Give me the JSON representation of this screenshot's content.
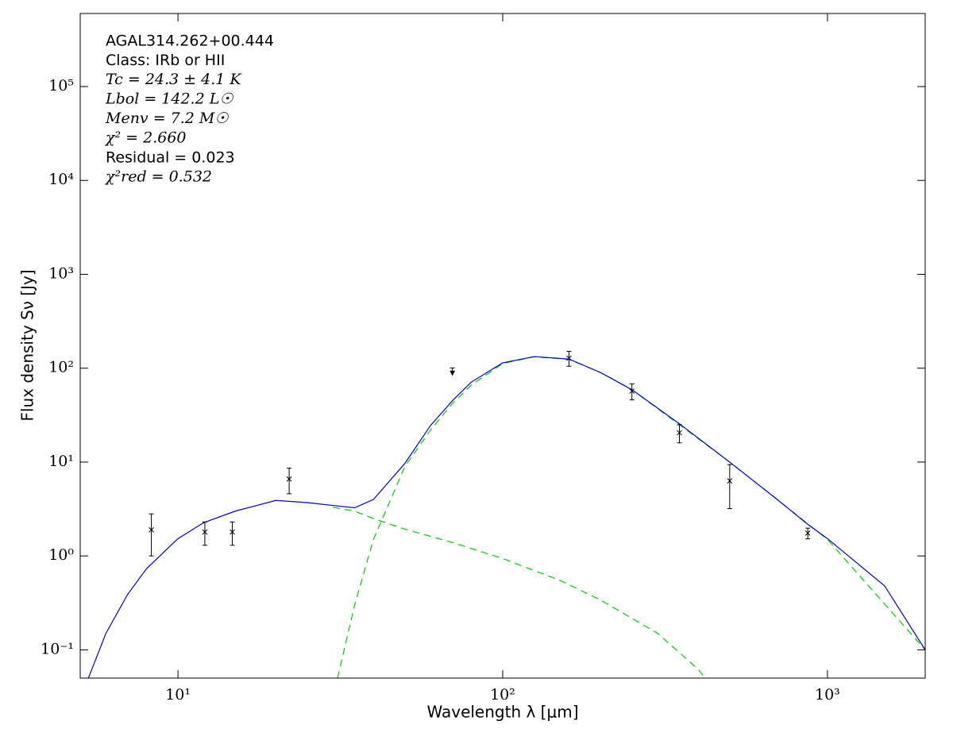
{
  "chart_data": {
    "type": "line",
    "xlabel": "Wavelength λ [μm]",
    "ylabel": "Flux density Sν [Jy]",
    "xlog": true,
    "ylog": true,
    "xlim": [
      5,
      2000
    ],
    "ylim": [
      0.05,
      600000
    ],
    "xticks": [
      {
        "value": 10,
        "label": "10¹"
      },
      {
        "value": 100,
        "label": "10²"
      },
      {
        "value": 1000,
        "label": "10³"
      }
    ],
    "yticks": [
      {
        "value": 0.1,
        "label": "10⁻¹"
      },
      {
        "value": 1,
        "label": "10⁰"
      },
      {
        "value": 10,
        "label": "10¹"
      },
      {
        "value": 100,
        "label": "10²"
      },
      {
        "value": 1000,
        "label": "10³"
      },
      {
        "value": 10000,
        "label": "10⁴"
      },
      {
        "value": 100000,
        "label": "10⁵"
      }
    ],
    "annotations": [
      "AGAL314.262+00.444",
      "Class: IRb or HII",
      "Tc = 24.3 ± 4.1 K",
      "Lbol = 142.2 L☉",
      "Menv = 7.2 M☉",
      "χ² = 2.660",
      "Residual = 0.023",
      "χ²red = 0.532"
    ],
    "curves": [
      {
        "color": "#00cc00",
        "dashed": true,
        "x": [
          30,
          35,
          40,
          50,
          70,
          100,
          150,
          200,
          300,
          400,
          420
        ],
        "values": [
          3.3,
          3.0,
          2.5,
          1.93,
          1.39,
          0.94,
          0.55,
          0.34,
          0.15,
          0.062,
          0.05
        ]
      },
      {
        "color": "#00cc00",
        "dashed": true,
        "x": [
          31,
          35,
          40,
          50,
          60,
          70,
          80,
          100,
          125,
          160,
          200,
          250,
          350,
          500,
          700,
          1000,
          2000
        ],
        "values": [
          0.05,
          0.3,
          1.5,
          9,
          22,
          42,
          66,
          112,
          132,
          124,
          90,
          59,
          25,
          10,
          4,
          1.5,
          0.1
        ]
      },
      {
        "color": "#0000cc",
        "dashed": false,
        "x": [
          5.3,
          6,
          7,
          8,
          10,
          12,
          15,
          20,
          25,
          30,
          35,
          40,
          50,
          60,
          70,
          80,
          100,
          125,
          160,
          200,
          250,
          350,
          500,
          700,
          870,
          1000,
          1500,
          2000
        ],
        "values": [
          0.05,
          0.15,
          0.39,
          0.73,
          1.53,
          2.26,
          3.0,
          3.9,
          3.7,
          3.45,
          3.26,
          4.0,
          9.7,
          24.6,
          45,
          71,
          114,
          133,
          125,
          90,
          59,
          25.6,
          10.0,
          4.0,
          2.17,
          1.53,
          0.48,
          0.1
        ]
      }
    ],
    "points": {
      "color": "#000000",
      "x": [
        8.28,
        12.1,
        14.7,
        22,
        160,
        250,
        350,
        500,
        870
      ],
      "values": [
        1.9,
        1.8,
        1.8,
        6.6,
        128,
        57,
        20.5,
        6.3,
        1.75
      ],
      "errors": [
        0.9,
        0.5,
        0.5,
        2,
        23,
        11,
        4.5,
        3.1,
        0.23
      ]
    },
    "upper_limits": {
      "color": "#000000",
      "x": [
        70
      ],
      "values": [
        95
      ]
    }
  }
}
